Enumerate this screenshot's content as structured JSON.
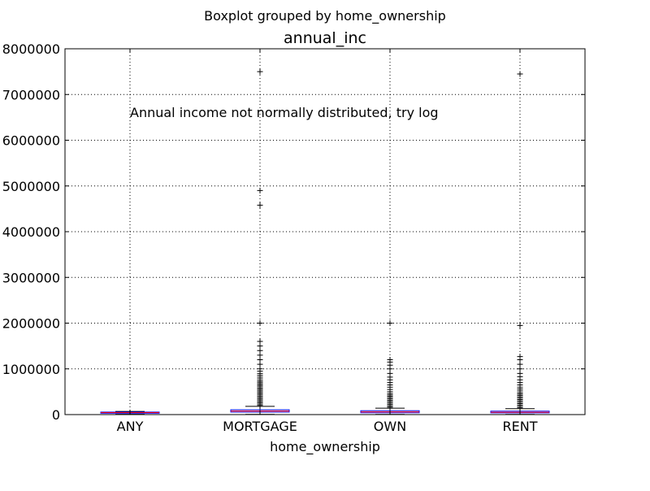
{
  "chart_data": {
    "type": "box",
    "suptitle": "Boxplot grouped by home_ownership",
    "title": "annual_inc",
    "xlabel": "home_ownership",
    "ylabel": "",
    "annotation": "Annual income not normally distributed, try log",
    "ylim": [
      0,
      8000000
    ],
    "yticks": [
      0,
      1000000,
      2000000,
      3000000,
      4000000,
      5000000,
      6000000,
      7000000,
      8000000
    ],
    "ytick_labels": [
      "0",
      "1000000",
      "2000000",
      "3000000",
      "4000000",
      "5000000",
      "6000000",
      "7000000",
      "8000000"
    ],
    "grid": true,
    "colors": {
      "box": "#0000ff",
      "median": "#ff0000",
      "whisker": "#000000",
      "flier": "#000000"
    },
    "categories": [
      "ANY",
      "MORTGAGE",
      "OWN",
      "RENT"
    ],
    "boxes": [
      {
        "category": "ANY",
        "whislo": 7000,
        "q1": 30000,
        "med": 45000,
        "q3": 55000,
        "whishi": 70000,
        "fliers": []
      },
      {
        "category": "MORTGAGE",
        "whislo": 4000,
        "q1": 55000,
        "med": 75000,
        "q3": 105000,
        "whishi": 180000,
        "fliers": [
          200000,
          230000,
          260000,
          290000,
          320000,
          350000,
          380000,
          410000,
          440000,
          470000,
          500000,
          530000,
          560000,
          590000,
          620000,
          650000,
          680000,
          710000,
          740000,
          780000,
          820000,
          860000,
          900000,
          950000,
          1000000,
          1100000,
          1200000,
          1300000,
          1400000,
          1500000,
          1600000,
          2000000,
          4580000,
          4900000,
          7500000
        ]
      },
      {
        "category": "OWN",
        "whislo": 4000,
        "q1": 40000,
        "med": 58000,
        "q3": 85000,
        "whishi": 140000,
        "fliers": [
          160000,
          190000,
          220000,
          250000,
          280000,
          310000,
          340000,
          370000,
          400000,
          430000,
          460000,
          500000,
          550000,
          600000,
          650000,
          700000,
          760000,
          820000,
          900000,
          1000000,
          1080000,
          1150000,
          1200000,
          2000000
        ]
      },
      {
        "category": "RENT",
        "whislo": 4000,
        "q1": 38000,
        "med": 52000,
        "q3": 75000,
        "whishi": 130000,
        "fliers": [
          150000,
          180000,
          210000,
          240000,
          270000,
          300000,
          330000,
          360000,
          390000,
          420000,
          450000,
          480000,
          520000,
          560000,
          600000,
          650000,
          700000,
          760000,
          830000,
          900000,
          1000000,
          1100000,
          1200000,
          1270000,
          1950000,
          7450000
        ]
      }
    ]
  }
}
